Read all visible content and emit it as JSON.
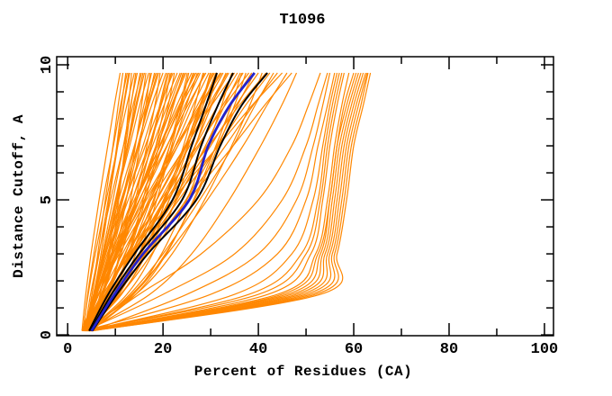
{
  "chart_data": {
    "type": "line",
    "title": "T1096",
    "xlabel": "Percent of Residues (CA)",
    "ylabel": "Distance Cutoff, A",
    "xlim": [
      -2.3,
      101.9
    ],
    "ylim": [
      -0.03,
      10.3
    ],
    "x_major_ticks": [
      0,
      20,
      40,
      60,
      80,
      100
    ],
    "x_minor_ticks": [
      10,
      30,
      50,
      70,
      90
    ],
    "y_major_ticks": [
      0,
      5,
      10
    ],
    "y_minor_ticks": [
      1,
      2,
      3,
      4,
      6,
      7,
      8,
      9
    ],
    "grid": false,
    "legend": "none",
    "frame": "box-with-mirrored-inward-ticks",
    "colors": {
      "orange_models": "#ff8700",
      "black_models": "#000000",
      "blue_model": "#2222cc",
      "frame": "#000000"
    },
    "cutoff_levels": [
      0.15,
      1.5,
      3,
      5,
      7,
      8.5,
      9.7
    ],
    "series": [
      {
        "name": "orange-models",
        "color_key": "orange_models",
        "stroke_width": 1.2,
        "curves_percent_at_cutoff": [
          [
            3,
            3.8,
            4.9,
            6.6,
            8.4,
            9.8,
            11
          ],
          [
            4,
            5.1,
            6.3,
            7.9,
            9.5,
            10.6,
            11.6
          ],
          [
            3.5,
            5.4,
            7.0,
            8.7,
            10.3,
            11.3,
            12.2
          ],
          [
            4.5,
            5.7,
            7.0,
            8.7,
            10.5,
            11.7,
            12.8
          ],
          [
            5,
            7.5,
            9.2,
            10.7,
            12.0,
            12.8,
            13.4
          ],
          [
            3.2,
            4.3,
            5.8,
            8.1,
            10.5,
            12.4,
            14
          ],
          [
            4.2,
            5.7,
            7.3,
            9.5,
            11.7,
            13.2,
            14.6
          ],
          [
            3,
            5.7,
            7.9,
            10.3,
            12.5,
            14.0,
            15.2
          ],
          [
            4,
            5.7,
            7.5,
            10.0,
            12.5,
            14.3,
            15.8
          ],
          [
            3.5,
            7.4,
            10.0,
            12.3,
            14.2,
            15.5,
            16.4
          ],
          [
            4.5,
            5.8,
            7.5,
            10.1,
            13.0,
            15.1,
            17
          ],
          [
            5,
            6.8,
            8.8,
            11.4,
            14.1,
            16.0,
            17.6
          ],
          [
            3.2,
            6.5,
            9.2,
            12.2,
            14.9,
            16.7,
            18.2
          ],
          [
            4.2,
            6.2,
            8.6,
            11.6,
            14.7,
            16.9,
            18.8
          ],
          [
            3,
            7.9,
            11.2,
            14.2,
            16.6,
            18.3,
            19.4
          ],
          [
            4,
            5.6,
            7.8,
            11.2,
            14.9,
            17.6,
            20
          ],
          [
            3.5,
            5.9,
            8.6,
            12.2,
            15.8,
            18.4,
            20.6
          ],
          [
            4.5,
            8.2,
            11.2,
            14.5,
            17.5,
            19.5,
            21.2
          ],
          [
            5,
            7.4,
            10.0,
            13.6,
            17.1,
            19.6,
            21.8
          ],
          [
            3.2,
            9.0,
            12.8,
            16.3,
            19.1,
            21.1,
            22.4
          ],
          [
            4.2,
            6.1,
            8.7,
            12.7,
            17.0,
            20.2,
            23
          ],
          [
            3,
            5.9,
            9.2,
            13.5,
            17.8,
            20.9,
            23.6
          ],
          [
            4,
            8.4,
            12.1,
            16.1,
            19.8,
            22.2,
            24.2
          ],
          [
            3.5,
            6.5,
            9.9,
            14.4,
            18.8,
            22.0,
            24.8
          ],
          [
            4.5,
            10.8,
            15.0,
            18.7,
            21.8,
            23.9,
            25.4
          ],
          [
            5,
            7.1,
            10.0,
            14.5,
            19.3,
            22.9,
            26
          ],
          [
            3.2,
            6.5,
            10.2,
            15.1,
            20.0,
            23.6,
            26.6
          ],
          [
            4.2,
            9.3,
            13.4,
            18.0,
            22.1,
            24.9,
            27.2
          ],
          [
            3,
            6.5,
            10.4,
            15.6,
            20.9,
            24.6,
            27.8
          ],
          [
            4,
            11.3,
            16.2,
            20.6,
            24.3,
            26.7,
            28.4
          ],
          [
            3.5,
            6.1,
            9.6,
            15.0,
            20.8,
            25.2,
            29
          ],
          [
            4.5,
            8.0,
            12.0,
            17.3,
            22.6,
            26.3,
            29.6
          ],
          [
            5,
            10.5,
            15.1,
            20.1,
            24.7,
            27.7,
            30.2
          ],
          [
            3.2,
            7.1,
            11.5,
            17.3,
            23.1,
            27.2,
            30.8
          ],
          [
            4.2,
            12.4,
            17.8,
            22.7,
            26.8,
            29.5,
            31.4
          ],
          [
            3,
            5.9,
            10.0,
            16.1,
            22.7,
            27.7,
            32
          ],
          [
            4,
            8.0,
            12.6,
            18.6,
            24.6,
            28.9,
            32.6
          ],
          [
            3.5,
            10.0,
            15.4,
            21.3,
            26.7,
            30.2,
            33.2
          ],
          [
            4.5,
            8.6,
            13.3,
            19.4,
            25.6,
            30.0,
            33.8
          ],
          [
            5,
            13.8,
            19.7,
            25.0,
            29.4,
            32.3,
            34.4
          ],
          [
            3.2,
            6.4,
            10.8,
            17.5,
            24.8,
            30.2,
            35
          ],
          [
            4.2,
            8.6,
            13.6,
            20.2,
            26.8,
            31.5,
            35.6
          ],
          [
            3,
            10.3,
            16.3,
            22.9,
            28.9,
            32.9,
            36.2
          ],
          [
            4,
            8.6,
            13.8,
            20.7,
            27.6,
            32.5,
            36.8
          ],
          [
            3.5,
            13.7,
            20.5,
            26.6,
            31.6,
            35.0,
            37.4
          ],
          [
            4.5,
            7.9,
            12.5,
            19.6,
            27.3,
            33.0,
            38
          ],
          [
            5,
            9.7,
            15.1,
            22.1,
            29.2,
            34.2,
            38.6
          ],
          [
            3.2,
            11.1,
            17.6,
            24.8,
            31.3,
            35.6,
            39.2
          ],
          [
            4.2,
            9.2,
            15.0,
            22.5,
            30.0,
            35.3,
            40
          ],
          [
            3,
            14.3,
            21.9,
            28.7,
            34.4,
            38.2,
            40.8
          ],
          [
            4,
            7.8,
            13.0,
            20.9,
            29.6,
            36.0,
            41.6
          ],
          [
            3.5,
            8.9,
            15.2,
            23.3,
            31.5,
            37.3,
            42.4
          ],
          [
            4.5,
            13.0,
            20.0,
            27.7,
            34.7,
            39.3,
            43.2
          ],
          [
            5,
            10.5,
            16.7,
            24.9,
            33.1,
            38.9,
            44
          ],
          [
            3.2,
            7.4,
            13.2,
            22.0,
            31.6,
            38.7,
            45
          ],
          [
            4.2,
            13.4,
            20.9,
            29.3,
            36.8,
            41.8,
            46
          ],
          [
            3,
            9.2,
            16.2,
            25.4,
            34.7,
            41.3,
            47
          ],
          [
            4,
            17.2,
            26.0,
            33.9,
            40.5,
            44.9,
            48
          ],
          [
            3.8,
            5.1,
            6.6,
            8.5,
            10.4,
            11.8,
            13
          ],
          [
            3.6,
            4.8,
            6.5,
            9.0,
            11.7,
            13.7,
            15.5
          ],
          [
            4.4,
            8.3,
            10.9,
            13.2,
            15.1,
            16.4,
            17.3
          ],
          [
            3.3,
            5.5,
            8.0,
            11.4,
            14.7,
            17.0,
            19.1
          ],
          [
            4.8,
            8.3,
            11.2,
            14.5,
            17.4,
            19.3,
            20.9
          ],
          [
            3.9,
            5.7,
            8.3,
            12.1,
            16.3,
            19.4,
            22.1
          ],
          [
            4.6,
            7.3,
            10.4,
            14.4,
            18.5,
            21.4,
            23.9
          ],
          [
            3.4,
            9.9,
            14.3,
            18.2,
            21.4,
            23.6,
            25.1
          ],
          [
            4.1,
            9.0,
            13.0,
            17.4,
            21.4,
            24.1,
            26.3
          ],
          [
            3.7,
            6.1,
            9.4,
            14.4,
            19.9,
            23.9,
            27.5
          ],
          [
            4.9,
            8.2,
            12.0,
            17.0,
            22.0,
            25.6,
            28.7
          ],
          [
            3.1,
            11.1,
            16.5,
            21.3,
            25.3,
            28.0,
            29.9
          ],
          [
            4.3,
            10.2,
            15.0,
            20.4,
            25.2,
            28.4,
            31.1
          ],
          [
            3.6,
            6.5,
            10.5,
            16.5,
            23.1,
            28.0,
            32.3
          ],
          [
            3.3,
            4.2,
            5.5,
            7.4,
            9.6,
            11.1,
            12.5
          ],
          [
            4.7,
            6.8,
            8.5,
            10.5,
            12.2,
            13.3,
            14.3
          ],
          [
            3.9,
            5.6,
            7.6,
            10.1,
            12.7,
            14.5,
            16.1
          ],
          [
            4.4,
            5.8,
            7.8,
            10.7,
            14.0,
            16.4,
            18.5
          ],
          [
            3.8,
            9.1,
            12.7,
            15.8,
            18.5,
            20.3,
            21.5
          ],
          [
            4.1,
            7.0,
            10.2,
            14.5,
            18.8,
            21.8,
            24.5
          ],
          [
            3.5,
            5.8,
            9.1,
            14.0,
            19.4,
            23.4,
            26.9
          ],
          [
            4.6,
            10.3,
            15.0,
            20.1,
            24.8,
            27.9,
            30.5
          ],
          [
            3.3,
            7.5,
            12.4,
            18.7,
            25.0,
            29.6,
            33.5
          ],
          [
            4.8,
            14.3,
            20.7,
            26.4,
            31.1,
            34.3,
            36.5
          ],
          [
            4,
            46,
            53,
            55,
            56.5,
            58,
            60
          ],
          [
            4.5,
            48,
            54,
            56,
            57.5,
            59.5,
            61.5
          ],
          [
            3.5,
            44,
            52,
            54.5,
            56,
            57.5,
            59
          ],
          [
            5,
            50,
            55,
            57,
            58.5,
            60.5,
            62.5
          ],
          [
            4.2,
            42,
            51,
            53.5,
            55,
            56.5,
            58
          ],
          [
            3.8,
            47,
            53.5,
            55.5,
            57,
            59,
            61
          ],
          [
            4.8,
            51,
            55.5,
            57.5,
            59,
            61,
            62.8
          ],
          [
            3.2,
            40,
            50,
            53,
            54.5,
            56,
            57.5
          ],
          [
            4.4,
            49,
            54.5,
            56.5,
            58,
            60,
            62
          ],
          [
            5.2,
            52,
            56,
            58,
            59.5,
            61.5,
            63
          ],
          [
            3.6,
            38,
            49,
            52.5,
            54,
            55.5,
            57
          ],
          [
            4.6,
            45,
            52.5,
            55,
            56.5,
            58.5,
            60.5
          ],
          [
            4,
            35,
            47,
            51.5,
            53.5,
            55,
            56.5
          ],
          [
            3.4,
            30,
            44,
            50,
            52.5,
            54.5,
            56
          ],
          [
            4.9,
            25,
            40,
            48,
            51.5,
            53.5,
            55
          ],
          [
            3.7,
            20,
            35,
            45,
            50,
            52.5,
            54.5
          ],
          [
            4.3,
            15,
            28,
            40,
            47,
            50.5,
            53
          ],
          [
            5.1,
            53,
            56.5,
            58.5,
            60,
            62,
            63.5
          ]
        ]
      },
      {
        "name": "black-models",
        "color_key": "black_models",
        "stroke_width": 2,
        "curves_percent_at_cutoff": [
          [
            4.5,
            8.5,
            14,
            22,
            26,
            29,
            31.3
          ],
          [
            4.8,
            9.2,
            15,
            24,
            28,
            31.5,
            34.7
          ],
          [
            5.2,
            10.3,
            16.8,
            27,
            32,
            36.5,
            41.9
          ]
        ]
      },
      {
        "name": "blue-model",
        "color_key": "blue_model",
        "stroke_width": 2.8,
        "curves_percent_at_cutoff": [
          [
            5.0,
            9.8,
            15.8,
            25.5,
            29.5,
            34,
            39.2
          ]
        ]
      }
    ]
  }
}
